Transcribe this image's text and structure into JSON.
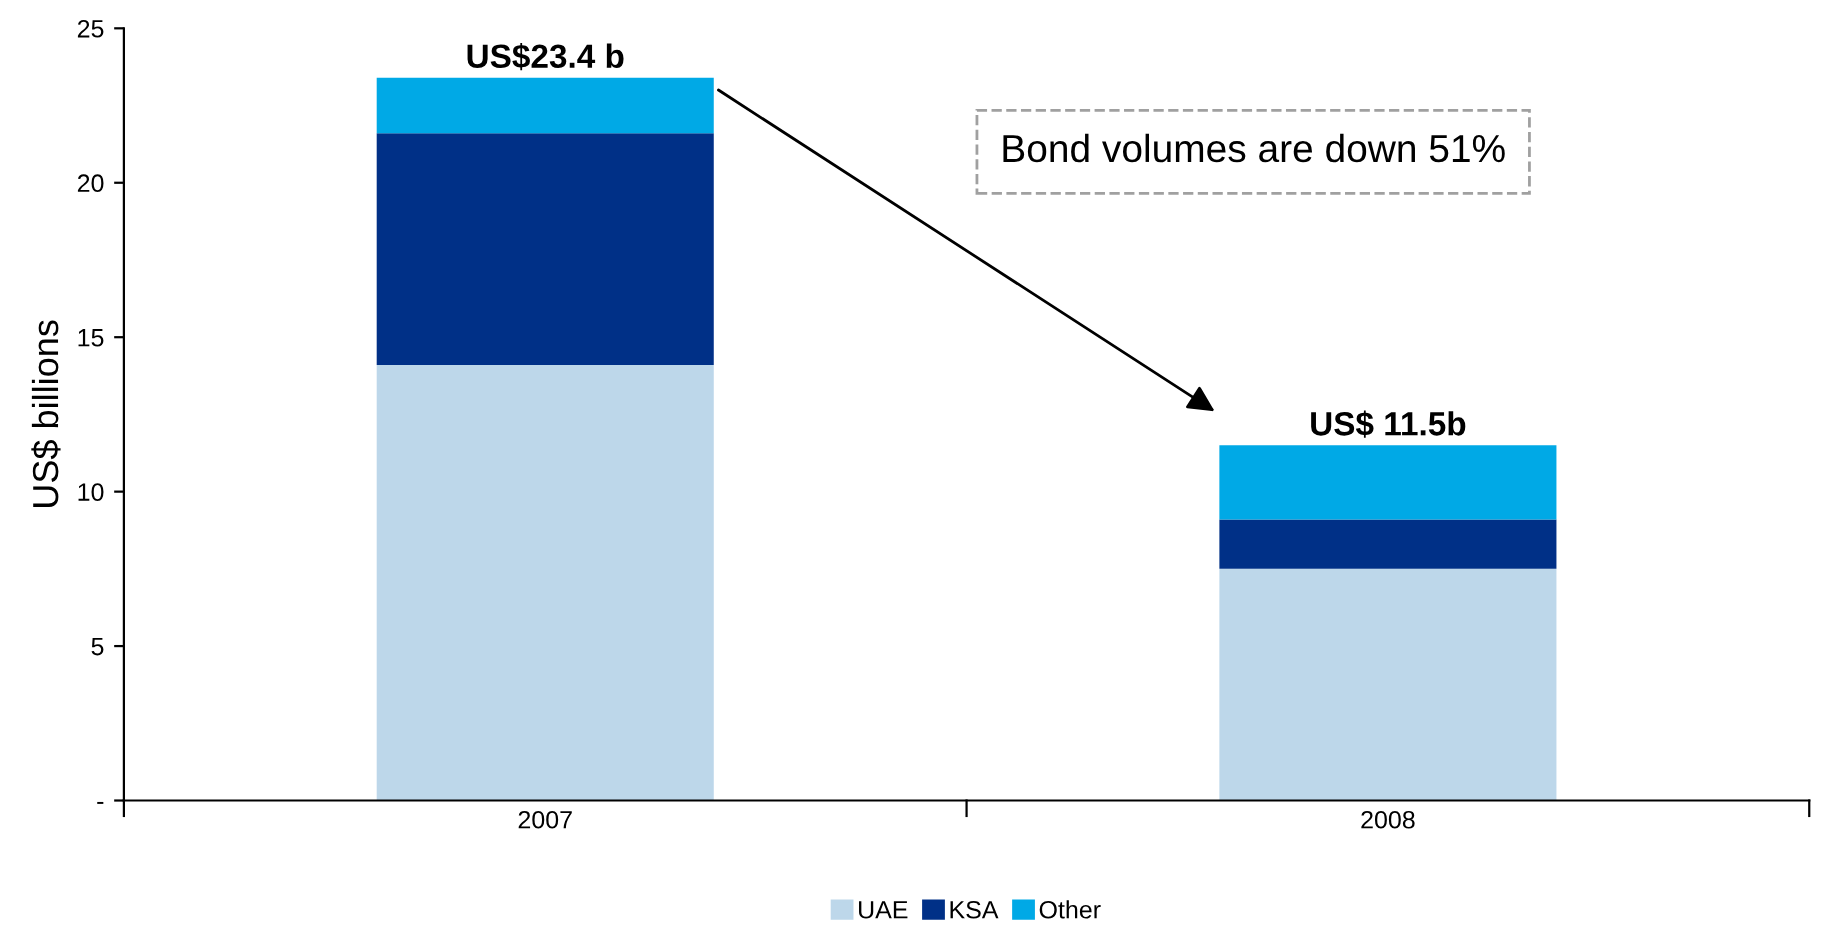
{
  "chart_data": {
    "type": "bar",
    "stacked": true,
    "ylabel": "US$ billions",
    "categories": [
      "2007",
      "2008"
    ],
    "series": [
      {
        "name": "UAE",
        "color": "#bdd7ea",
        "values": [
          14.1,
          7.5
        ]
      },
      {
        "name": "KSA",
        "color": "#003087",
        "values": [
          7.5,
          1.6
        ]
      },
      {
        "name": "Other",
        "color": "#00a9e6",
        "values": [
          1.8,
          2.4
        ]
      }
    ],
    "totals": [
      "US$23.4 b",
      "US$ 11.5b"
    ],
    "annotations": [
      "Bond volumes are down 51%"
    ],
    "ylim": [
      0,
      25
    ],
    "yticks": [
      {
        "value": 0,
        "label": "-"
      },
      5,
      10,
      15,
      20,
      25
    ],
    "grid": false,
    "legend": "bottom"
  }
}
